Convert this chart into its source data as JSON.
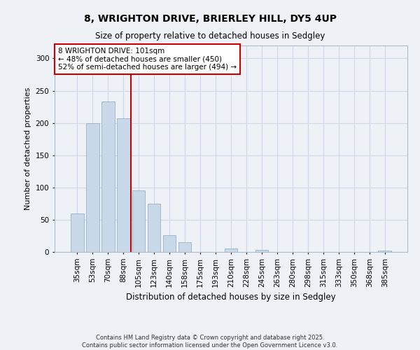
{
  "title1": "8, WRIGHTON DRIVE, BRIERLEY HILL, DY5 4UP",
  "title2": "Size of property relative to detached houses in Sedgley",
  "xlabel": "Distribution of detached houses by size in Sedgley",
  "ylabel": "Number of detached properties",
  "categories": [
    "35sqm",
    "53sqm",
    "70sqm",
    "88sqm",
    "105sqm",
    "123sqm",
    "140sqm",
    "158sqm",
    "175sqm",
    "193sqm",
    "210sqm",
    "228sqm",
    "245sqm",
    "263sqm",
    "280sqm",
    "298sqm",
    "315sqm",
    "333sqm",
    "350sqm",
    "368sqm",
    "385sqm"
  ],
  "values": [
    60,
    200,
    233,
    207,
    95,
    75,
    26,
    15,
    0,
    0,
    5,
    0,
    3,
    0,
    0,
    0,
    0,
    0,
    0,
    0,
    2
  ],
  "bar_color": "#c8d8e8",
  "bar_edge_color": "#9ab0c8",
  "grid_color": "#d0d8e8",
  "background_color": "#eef2f7",
  "vline_color": "#cc0000",
  "annotation_text": "8 WRIGHTON DRIVE: 101sqm\n← 48% of detached houses are smaller (450)\n52% of semi-detached houses are larger (494) →",
  "annotation_box_color": "#ffffff",
  "annotation_box_edge": "#cc0000",
  "footer1": "Contains HM Land Registry data © Crown copyright and database right 2025.",
  "footer2": "Contains public sector information licensed under the Open Government Licence v3.0.",
  "ylim": [
    0,
    320
  ],
  "yticks": [
    0,
    50,
    100,
    150,
    200,
    250,
    300
  ]
}
